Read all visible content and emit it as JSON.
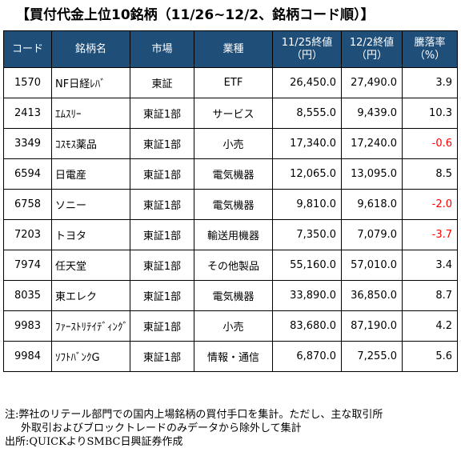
{
  "title": "【買付代金上位10銘柄（11/26~12/2、銘柄コード順）】",
  "table": {
    "headers": {
      "code": "コード",
      "name": "銘柄名",
      "market": "市場",
      "industry": "業種",
      "price_1125_line1": "11/25終値",
      "price_1125_line2": "（円）",
      "price_122_line1": "12/2終値",
      "price_122_line2": "（円）",
      "change_line1": "騰落率",
      "change_line2": "（%）"
    },
    "rows": [
      {
        "code": "1570",
        "name": "NF日経ﾚﾊﾞ",
        "market": "東証",
        "industry": "ETF",
        "p1": "26,450.0",
        "p2": "27,490.0",
        "chg": "3.9",
        "negative": false
      },
      {
        "code": "2413",
        "name": "ｴﾑｽﾘｰ",
        "market": "東証1部",
        "industry": "サービス",
        "p1": "8,555.0",
        "p2": "9,439.0",
        "chg": "10.3",
        "negative": false
      },
      {
        "code": "3349",
        "name": "ｺｽﾓｽ薬品",
        "market": "東証1部",
        "industry": "小売",
        "p1": "17,340.0",
        "p2": "17,240.0",
        "chg": "-0.6",
        "negative": true
      },
      {
        "code": "6594",
        "name": "日電産",
        "market": "東証1部",
        "industry": "電気機器",
        "p1": "12,065.0",
        "p2": "13,095.0",
        "chg": "8.5",
        "negative": false
      },
      {
        "code": "6758",
        "name": "ソニー",
        "market": "東証1部",
        "industry": "電気機器",
        "p1": "9,810.0",
        "p2": "9,618.0",
        "chg": "-2.0",
        "negative": true
      },
      {
        "code": "7203",
        "name": "トヨタ",
        "market": "東証1部",
        "industry": "輸送用機器",
        "p1": "7,350.0",
        "p2": "7,079.0",
        "chg": "-3.7",
        "negative": true
      },
      {
        "code": "7974",
        "name": "任天堂",
        "market": "東証1部",
        "industry": "その他製品",
        "p1": "55,160.0",
        "p2": "57,010.0",
        "chg": "3.4",
        "negative": false
      },
      {
        "code": "8035",
        "name": "東エレク",
        "market": "東証1部",
        "industry": "電気機器",
        "p1": "33,890.0",
        "p2": "36,850.0",
        "chg": "8.7",
        "negative": false
      },
      {
        "code": "9983",
        "name": "ﾌｧｰｽﾄﾘﾃｲﾃﾞｨﾝｸﾞ",
        "market": "東証1部",
        "industry": "小売",
        "p1": "83,680.0",
        "p2": "87,190.0",
        "chg": "4.2",
        "negative": false
      },
      {
        "code": "9984",
        "name": "ｿﾌﾄﾊﾞﾝｸG",
        "market": "東証1部",
        "industry": "情報・通信",
        "p1": "6,870.0",
        "p2": "7,255.0",
        "chg": "5.6",
        "negative": false
      }
    ]
  },
  "notes": {
    "line1": "注:弊社のリテール部門での国内上場銘柄の買付手口を集計。ただし、主な取引所",
    "line2": "外取引およびブロックトレードのみデータから除外して集計",
    "line3": "出所:QUICKよりSMBC日興証券作成"
  },
  "colors": {
    "header_bg": "#1f4e79",
    "header_text": "#ffffff",
    "negative": "#ff0000"
  }
}
